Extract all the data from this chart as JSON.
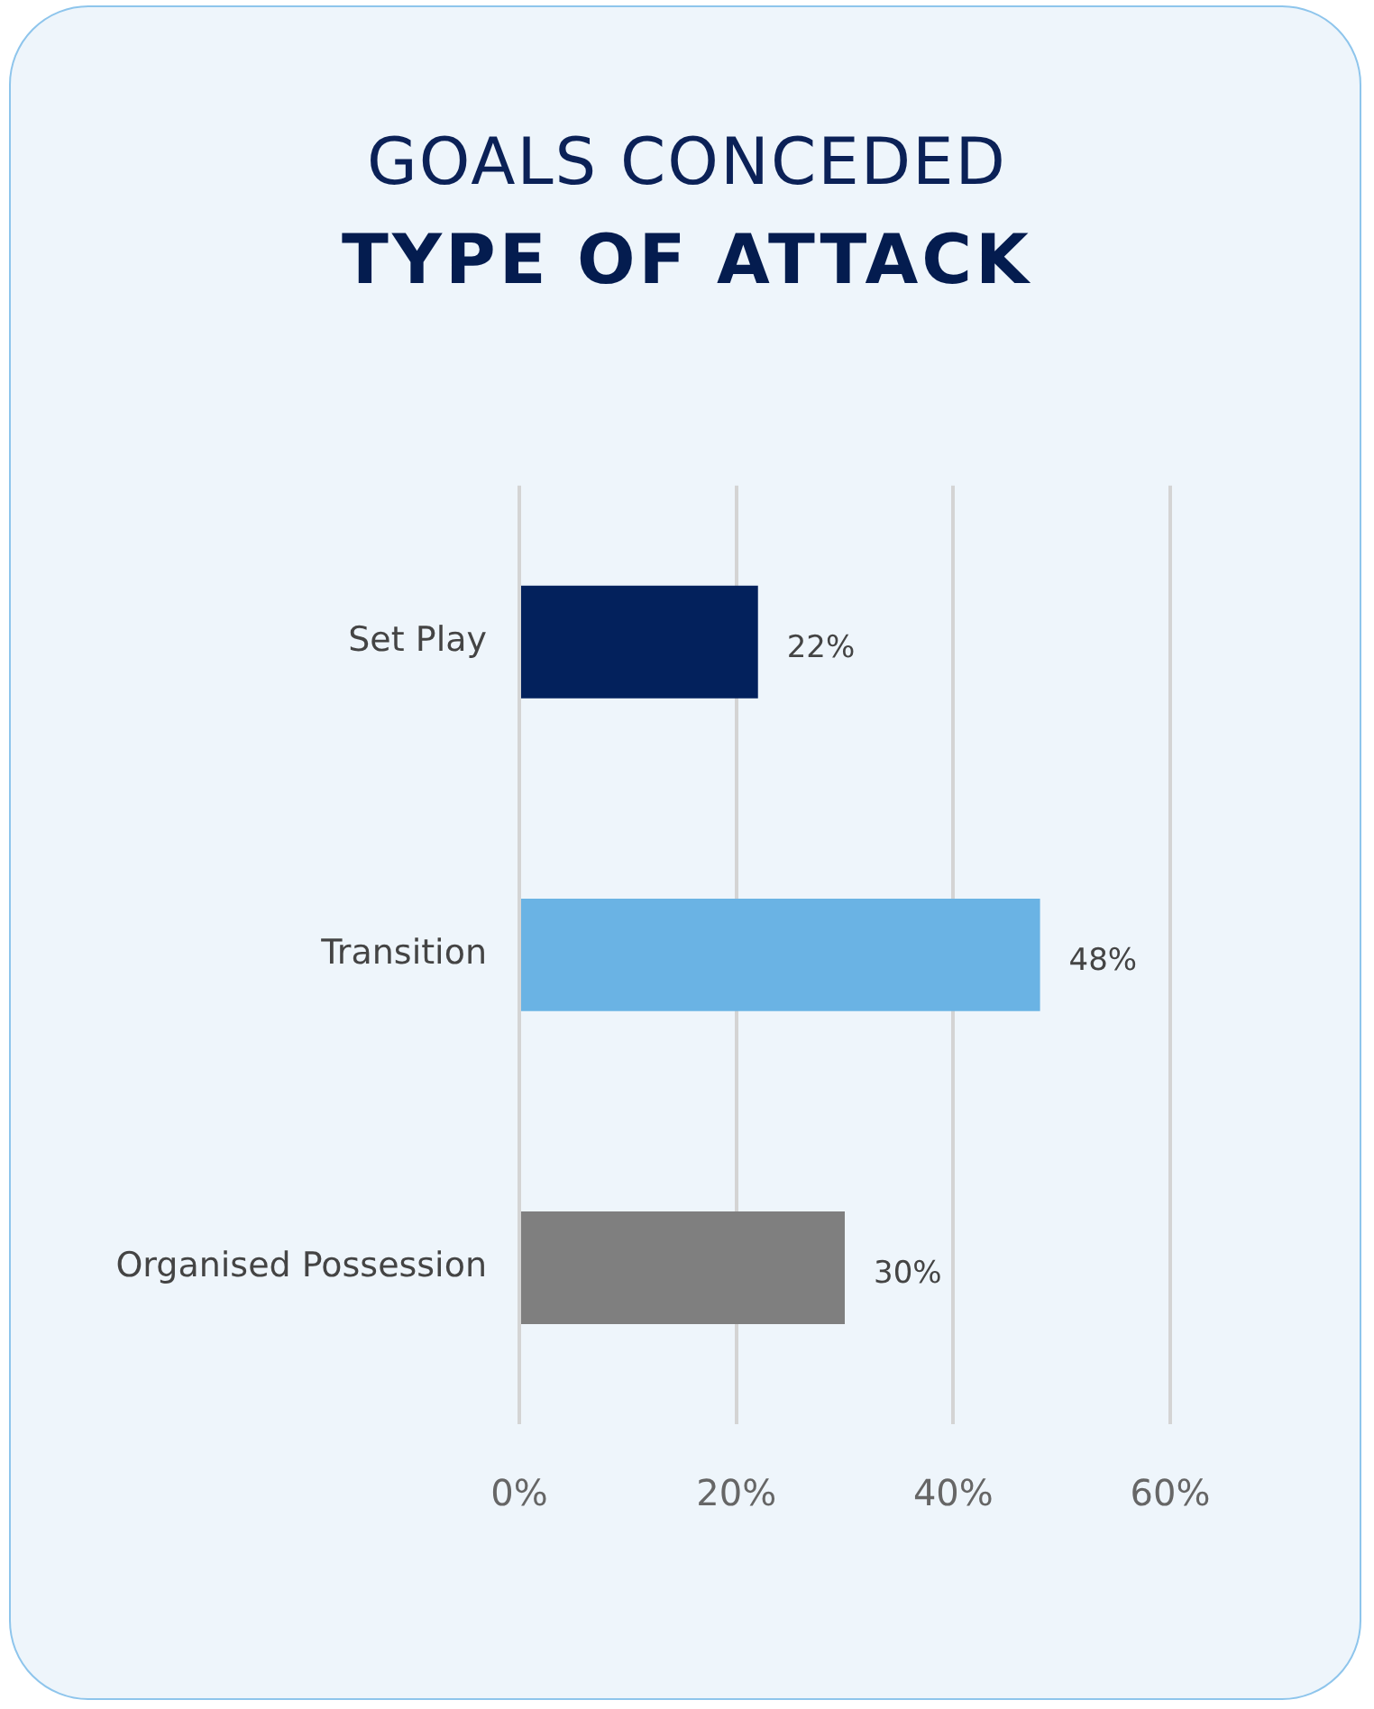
{
  "chart_data": {
    "type": "bar",
    "title": "GOALS CONCEDED",
    "subtitle": "TYPE OF ATTACK",
    "orientation": "horizontal",
    "categories": [
      "Set Play",
      "Transition",
      "Organised Possession"
    ],
    "values": [
      22,
      48,
      30
    ],
    "value_labels": [
      "22%",
      "48%",
      "30%"
    ],
    "colors": [
      "#03215c",
      "#6ab3e4",
      "#7f7f7f"
    ],
    "xlim": [
      0,
      60
    ],
    "xticks": [
      {
        "value": 0,
        "label": "0%"
      },
      {
        "value": 20,
        "label": "20%"
      },
      {
        "value": 40,
        "label": "40%"
      },
      {
        "value": 60,
        "label": "60%"
      }
    ],
    "grid": "x"
  }
}
